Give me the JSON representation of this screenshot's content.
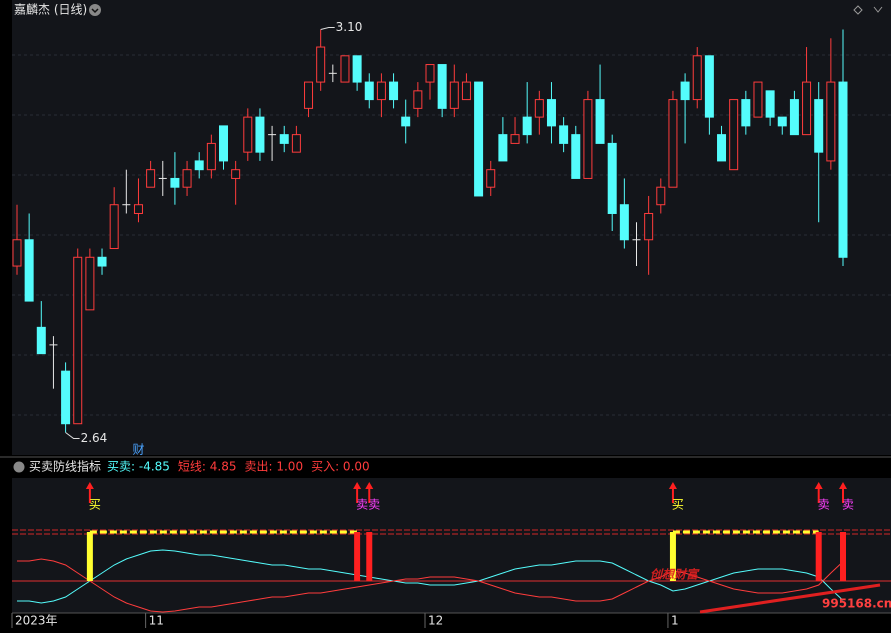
{
  "chart_data": {
    "type": "candlestick",
    "title": "嘉麟杰 (日线)",
    "ylim": [
      2.62,
      3.12
    ],
    "up_color": "#ff3c3c",
    "down_color": "#54fcfc",
    "flat_color": "#e8e8e8",
    "open": [
      2.83,
      2.86,
      2.76,
      2.74,
      2.71,
      2.65,
      2.78,
      2.84,
      2.85,
      2.9,
      2.89,
      2.92,
      2.93,
      2.93,
      2.92,
      2.95,
      2.94,
      2.99,
      2.93,
      2.96,
      3.0,
      2.98,
      2.98,
      2.96,
      3.01,
      3.04,
      3.05,
      3.04,
      3.07,
      3.04,
      3.02,
      3.04,
      3.0,
      3.01,
      3.04,
      3.06,
      3.01,
      3.02,
      3.04,
      2.92,
      2.98,
      2.97,
      3.0,
      3.0,
      3.02,
      2.99,
      2.98,
      2.93,
      3.02,
      2.97,
      2.9,
      2.86,
      2.86,
      2.9,
      2.92,
      3.04,
      3.02,
      3.07,
      2.98,
      2.94,
      3.02,
      3.0,
      3.03,
      3.0,
      3.02,
      2.98,
      3.02,
      2.95,
      3.04
    ],
    "high": [
      2.9,
      2.89,
      2.79,
      2.75,
      2.72,
      2.85,
      2.85,
      2.85,
      2.92,
      2.94,
      2.93,
      2.95,
      2.95,
      2.96,
      2.95,
      2.96,
      2.98,
      2.99,
      2.95,
      3.01,
      3.01,
      2.99,
      2.99,
      2.99,
      3.04,
      3.1,
      3.06,
      3.07,
      3.07,
      3.05,
      3.05,
      3.05,
      3.02,
      3.04,
      3.06,
      3.06,
      3.06,
      3.05,
      3.04,
      2.95,
      3.0,
      3.0,
      3.04,
      3.03,
      3.04,
      3.0,
      2.99,
      3.03,
      3.06,
      2.98,
      2.93,
      2.88,
      2.91,
      2.93,
      3.03,
      3.05,
      3.08,
      3.07,
      2.99,
      3.02,
      3.03,
      3.04,
      3.03,
      3.0,
      3.03,
      3.08,
      3.04,
      3.09,
      3.1
    ],
    "low": [
      2.82,
      2.79,
      2.73,
      2.69,
      2.64,
      2.65,
      2.78,
      2.82,
      2.85,
      2.89,
      2.88,
      2.92,
      2.91,
      2.9,
      2.91,
      2.93,
      2.93,
      2.94,
      2.9,
      2.95,
      2.95,
      2.95,
      2.96,
      2.96,
      3.0,
      3.03,
      3.04,
      3.04,
      3.03,
      3.01,
      3.0,
      3.01,
      2.97,
      3.0,
      3.02,
      3.0,
      3.0,
      3.02,
      2.91,
      2.91,
      2.95,
      2.97,
      2.97,
      2.98,
      2.97,
      2.96,
      2.93,
      2.93,
      2.97,
      2.87,
      2.85,
      2.83,
      2.82,
      2.89,
      2.92,
      2.97,
      3.01,
      2.98,
      2.95,
      2.94,
      2.98,
      3.0,
      2.99,
      2.98,
      2.98,
      2.98,
      2.88,
      2.94,
      2.83
    ],
    "close": [
      2.86,
      2.79,
      2.73,
      2.74,
      2.65,
      2.84,
      2.84,
      2.83,
      2.9,
      2.9,
      2.9,
      2.94,
      2.93,
      2.92,
      2.94,
      2.94,
      2.97,
      2.95,
      2.94,
      3.0,
      2.96,
      2.98,
      2.97,
      2.98,
      3.04,
      3.08,
      3.05,
      3.07,
      3.04,
      3.02,
      3.04,
      3.02,
      2.99,
      3.03,
      3.06,
      3.01,
      3.04,
      3.04,
      2.91,
      2.94,
      2.95,
      2.98,
      2.98,
      3.02,
      2.99,
      2.97,
      2.93,
      3.02,
      2.97,
      2.89,
      2.86,
      2.86,
      2.89,
      2.92,
      3.02,
      3.02,
      3.07,
      3.0,
      2.95,
      3.02,
      2.99,
      3.04,
      3.0,
      2.99,
      2.98,
      3.04,
      2.96,
      3.04,
      2.84
    ],
    "annotations": [
      {
        "text": "3.10",
        "index": 25,
        "value": 3.1
      },
      {
        "text": "2.64",
        "index": 4,
        "value": 2.64
      }
    ],
    "event_marker": {
      "text": "财",
      "index": 10
    },
    "x_labels": [
      {
        "label": "2023年",
        "index": 0
      },
      {
        "label": "11",
        "index": 11
      },
      {
        "label": "12",
        "index": 34
      },
      {
        "label": "1",
        "index": 54
      }
    ],
    "indicator": {
      "title": "买卖防线指标",
      "legend": [
        {
          "text": "买卖: -4.85",
          "color": "#54fcfc"
        },
        {
          "text": "短线: 4.85",
          "color": "#ff3c3c"
        },
        {
          "text": "卖出: 1.00",
          "color": "#ff3c3c"
        },
        {
          "text": "买入: 0.00",
          "color": "#ff3c3c"
        }
      ],
      "ylim": [
        -13,
        15
      ],
      "signal_level": 12.25,
      "series": [
        {
          "name": "买卖",
          "color": "#54fcfc",
          "values": [
            -5,
            -5,
            -5.5,
            -5,
            -4,
            -2,
            0,
            2,
            4,
            5.5,
            6.5,
            7.5,
            7.75,
            7.5,
            7,
            6.5,
            6.5,
            6,
            5.5,
            5,
            4.5,
            4,
            4,
            3.5,
            3,
            3,
            2.5,
            2,
            1.5,
            1,
            0.5,
            0,
            -0.5,
            -0.5,
            -1,
            -1,
            -1,
            -0.5,
            0,
            1,
            2,
            3,
            3.5,
            4,
            4,
            4.5,
            5,
            5,
            5,
            4.5,
            3,
            1.5,
            0,
            -1,
            -2.5,
            -2,
            -1,
            0,
            1,
            2,
            2.5,
            3,
            3,
            3,
            2.5,
            2,
            1,
            -2,
            -4.85
          ]
        },
        {
          "name": "短线",
          "color": "#ff3c3c",
          "values": [
            5,
            5,
            5.5,
            5,
            4,
            2,
            0,
            -2,
            -4,
            -5.5,
            -6.5,
            -7.5,
            -7.75,
            -7.5,
            -7,
            -6.5,
            -6.5,
            -6,
            -5.5,
            -5,
            -4.5,
            -4,
            -4,
            -3.5,
            -3,
            -3,
            -2.5,
            -2,
            -1.5,
            -1,
            -0.5,
            0,
            0.5,
            0.5,
            1,
            1,
            1,
            0.5,
            0,
            -1,
            -2,
            -3,
            -3.5,
            -4,
            -4,
            -4.5,
            -5,
            -5,
            -5,
            -4.5,
            -3,
            -1.5,
            0,
            1,
            2.5,
            2,
            1,
            0,
            -1,
            -2,
            -2.5,
            -3,
            -3,
            -3,
            -2.5,
            -2,
            -1,
            2,
            4.85
          ]
        }
      ],
      "signals": [
        {
          "index": 6,
          "label": "买"
        },
        {
          "index": 28,
          "label": "卖"
        },
        {
          "index": 29,
          "label": "卖"
        },
        {
          "index": 54,
          "label": "买"
        },
        {
          "index": 66,
          "label": "卖"
        },
        {
          "index": 68,
          "label": "卖"
        }
      ]
    },
    "watermark": {
      "text": "创想财富",
      "url": "995168.cn"
    }
  }
}
